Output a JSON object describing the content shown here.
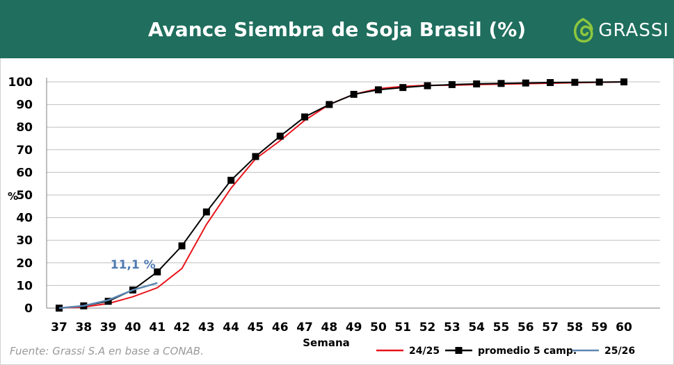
{
  "header": {
    "title": "Avance Siembra de Soja Brasil (%)",
    "brand": "GRASSI",
    "background": "#1f6e5e"
  },
  "source": "Fuente: Grassi S.A en base a CONAB.",
  "chart_data": {
    "type": "line",
    "xlabel": "Semana",
    "ylabel": "%",
    "xlim": [
      37,
      60
    ],
    "ylim": [
      0,
      100
    ],
    "x_ticks": [
      37,
      38,
      39,
      40,
      41,
      42,
      43,
      44,
      45,
      46,
      47,
      48,
      49,
      50,
      51,
      52,
      53,
      54,
      55,
      56,
      57,
      58,
      59,
      60
    ],
    "y_ticks": [
      0,
      10,
      20,
      30,
      40,
      50,
      60,
      70,
      80,
      90,
      100
    ],
    "grid": true,
    "legend": "bottom-right",
    "series": [
      {
        "name": "24/25",
        "color": "#e8141b",
        "marker": "none",
        "x": [
          37,
          38,
          39,
          40,
          41,
          42,
          43,
          44,
          45,
          46,
          47,
          48,
          49,
          50,
          51,
          52,
          53,
          54,
          55,
          56,
          57,
          58,
          59,
          60
        ],
        "values": [
          0,
          0.5,
          2,
          5,
          9,
          17.5,
          37,
          53,
          66,
          74,
          83,
          90,
          94.5,
          97,
          98,
          98.5,
          98.5,
          98.8,
          99,
          99.2,
          99.4,
          99.6,
          99.8,
          100
        ]
      },
      {
        "name": "promedio 5 camp.",
        "color": "#000000",
        "marker": "square",
        "x": [
          37,
          38,
          39,
          40,
          41,
          42,
          43,
          44,
          45,
          46,
          47,
          48,
          49,
          50,
          51,
          52,
          53,
          54,
          55,
          56,
          57,
          58,
          59,
          60
        ],
        "values": [
          0,
          1,
          3,
          8,
          16,
          27.5,
          42.5,
          56.5,
          67,
          76,
          84.5,
          90,
          94.5,
          96.5,
          97.5,
          98.3,
          98.8,
          99.1,
          99.3,
          99.5,
          99.7,
          99.8,
          99.9,
          100
        ]
      },
      {
        "name": "25/26",
        "color": "#5b86b0",
        "marker": "none",
        "x": [
          37,
          38,
          39,
          40,
          41
        ],
        "values": [
          0,
          1,
          3.5,
          8,
          11.1
        ]
      }
    ],
    "annotations": [
      {
        "text": "11,1 %",
        "x": 41,
        "y": 11.1,
        "color": "#4f7ab3"
      }
    ]
  }
}
